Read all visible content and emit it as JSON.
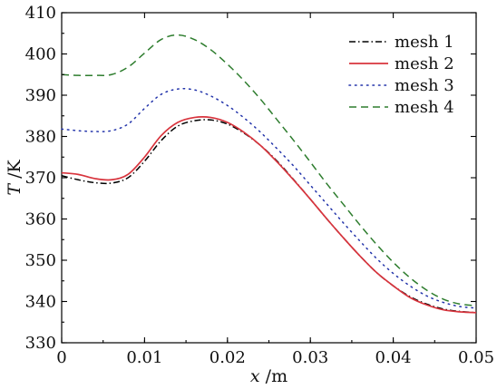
{
  "chart_data": {
    "type": "line",
    "xlabel": {
      "var": "x",
      "unit": " /m"
    },
    "ylabel": {
      "var": "T",
      "unit": " /K"
    },
    "xlim": [
      0,
      0.05
    ],
    "ylim": [
      330,
      410
    ],
    "x_ticks": [
      0,
      0.01,
      0.02,
      0.03,
      0.04,
      0.05
    ],
    "x_tick_labels": [
      "0",
      "0.01",
      "0.02",
      "0.03",
      "0.04",
      "0.05"
    ],
    "y_ticks": [
      330,
      340,
      350,
      360,
      370,
      380,
      390,
      400,
      410
    ],
    "y_tick_labels": [
      "330",
      "340",
      "350",
      "360",
      "370",
      "380",
      "390",
      "400",
      "410"
    ],
    "grid": false,
    "legend_position": "top-right",
    "x": [
      0,
      0.002,
      0.004,
      0.006,
      0.008,
      0.01,
      0.012,
      0.014,
      0.016,
      0.018,
      0.02,
      0.022,
      0.024,
      0.026,
      0.028,
      0.03,
      0.032,
      0.034,
      0.036,
      0.038,
      0.04,
      0.042,
      0.044,
      0.046,
      0.048,
      0.05
    ],
    "series": [
      {
        "name": "mesh 1",
        "style": "dashdot",
        "color": "#000000",
        "values": [
          370.5,
          369.5,
          368.8,
          368.7,
          370.0,
          374.0,
          379.0,
          382.5,
          383.8,
          384.0,
          383.0,
          380.8,
          377.8,
          374.0,
          369.5,
          364.8,
          360.0,
          355.4,
          351.0,
          347.0,
          343.8,
          341.2,
          339.4,
          338.2,
          337.6,
          337.3
        ]
      },
      {
        "name": "mesh 2",
        "style": "solid",
        "color": "#d8343d",
        "values": [
          371.2,
          370.8,
          369.8,
          369.5,
          370.8,
          375.0,
          380.2,
          383.4,
          384.6,
          384.6,
          383.4,
          381.0,
          377.8,
          373.8,
          369.4,
          364.8,
          360.0,
          355.4,
          351.0,
          347.0,
          343.8,
          341.0,
          339.2,
          338.0,
          337.5,
          337.3
        ]
      },
      {
        "name": "mesh 3",
        "style": "dotted",
        "color": "#2233aa",
        "values": [
          381.8,
          381.4,
          381.2,
          381.4,
          383.0,
          386.8,
          390.2,
          391.5,
          391.3,
          389.8,
          387.5,
          384.5,
          381.0,
          377.0,
          372.8,
          368.2,
          363.6,
          359.0,
          354.6,
          350.4,
          346.8,
          343.8,
          341.4,
          339.8,
          338.8,
          338.4
        ]
      },
      {
        "name": "mesh 4",
        "style": "dashed",
        "color": "#2e7d2e",
        "values": [
          395.0,
          394.8,
          394.8,
          395.0,
          396.8,
          400.2,
          403.5,
          404.6,
          403.5,
          401.0,
          397.5,
          393.5,
          389.0,
          384.0,
          379.0,
          373.8,
          368.5,
          363.5,
          358.5,
          353.8,
          349.5,
          345.8,
          342.8,
          340.6,
          339.4,
          339.0
        ]
      }
    ]
  }
}
